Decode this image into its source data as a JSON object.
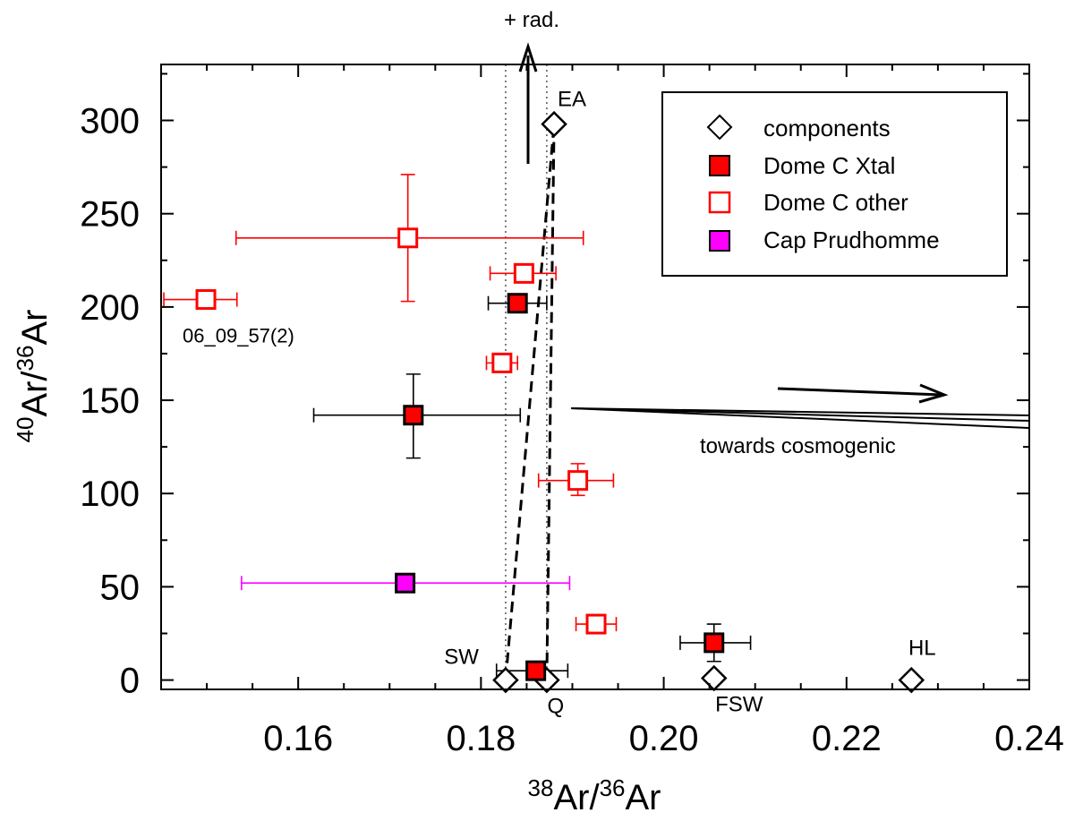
{
  "chart_data": {
    "type": "scatter",
    "xlabel": {
      "pre": "38",
      "mid": "Ar/",
      "sup": "36",
      "post": "Ar"
    },
    "ylabel": {
      "pre": "40",
      "mid": "Ar/",
      "sup": "36",
      "post": "Ar"
    },
    "xlim": [
      0.145,
      0.24
    ],
    "ylim": [
      -5,
      330
    ],
    "xticks": [
      0.16,
      0.18,
      0.2,
      0.22,
      0.24
    ],
    "xtick_labels": [
      "0.16",
      "0.18",
      "0.20",
      "0.22",
      "0.24"
    ],
    "yticks": [
      0,
      50,
      100,
      150,
      200,
      250,
      300
    ],
    "ytick_labels": [
      "0",
      "50",
      "100",
      "150",
      "200",
      "250",
      "300"
    ],
    "legend_position": "top-right",
    "series": [
      {
        "name": "components",
        "marker": "diamond",
        "fill": "#ffffff",
        "stroke": "#000000",
        "points": [
          {
            "x": 0.1827,
            "y": 0,
            "label": "SW"
          },
          {
            "x": 0.1872,
            "y": 0,
            "label": "Q"
          },
          {
            "x": 0.2055,
            "y": 1,
            "label": "FSW"
          },
          {
            "x": 0.2271,
            "y": 0,
            "label": "HL"
          },
          {
            "x": 0.188,
            "y": 298,
            "label": "EA"
          }
        ]
      },
      {
        "name": "Dome C Xtal",
        "marker": "square",
        "fill": "#ff0000",
        "stroke": "#000000",
        "points": [
          {
            "x": 0.184,
            "y": 202,
            "xerr": [
              0.1808,
              0.1872
            ],
            "yerr": null
          },
          {
            "x": 0.1726,
            "y": 142,
            "xerr": [
              0.1617,
              0.1843
            ],
            "yerr": [
              119,
              164
            ]
          },
          {
            "x": 0.2055,
            "y": 20,
            "xerr": [
              0.2018,
              0.2095
            ],
            "yerr": [
              10,
              30
            ]
          },
          {
            "x": 0.186,
            "y": 5,
            "xerr": [
              0.1817,
              0.1895
            ],
            "yerr": null
          }
        ]
      },
      {
        "name": "Dome C other",
        "marker": "square",
        "fill": "#ffffff",
        "stroke": "#ff0000",
        "points": [
          {
            "x": 0.172,
            "y": 237,
            "xerr": [
              0.1532,
              0.1912
            ],
            "yerr": [
              203,
              271
            ]
          },
          {
            "x": 0.1499,
            "y": 204,
            "xerr": [
              0.1453,
              0.1533
            ],
            "yerr": null,
            "label": "06_09_57(2)"
          },
          {
            "x": 0.1847,
            "y": 218,
            "xerr": [
              0.181,
              0.1882
            ],
            "yerr": null
          },
          {
            "x": 0.1823,
            "y": 170,
            "xerr": [
              0.1806,
              0.184
            ],
            "yerr": null
          },
          {
            "x": 0.1906,
            "y": 107,
            "xerr": [
              0.1863,
              0.1945
            ],
            "yerr": [
              99,
              116
            ]
          },
          {
            "x": 0.1926,
            "y": 30,
            "xerr": [
              0.1904,
              0.1948
            ],
            "yerr": null
          }
        ]
      },
      {
        "name": "Cap Prudhomme",
        "marker": "square",
        "fill": "#ff00ff",
        "stroke": "#000000",
        "errcolor": "#ff00ff",
        "points": [
          {
            "x": 0.1717,
            "y": 52,
            "xerr": [
              0.1538,
              0.1897
            ],
            "yerr": null
          }
        ]
      }
    ],
    "mixing_lines": [
      {
        "from": [
          0.1827,
          0
        ],
        "to": [
          0.188,
          298
        ],
        "style": "dashed"
      },
      {
        "from": [
          0.1872,
          0
        ],
        "to": [
          0.188,
          298
        ],
        "style": "dashed"
      }
    ],
    "reference_lines": [
      {
        "x": 0.1827,
        "style": "dotted"
      },
      {
        "x": 0.1872,
        "style": "dotted"
      }
    ],
    "annotations": {
      "radiogenic": "+ rad.",
      "cosmogenic": "towards cosmogenic"
    }
  }
}
